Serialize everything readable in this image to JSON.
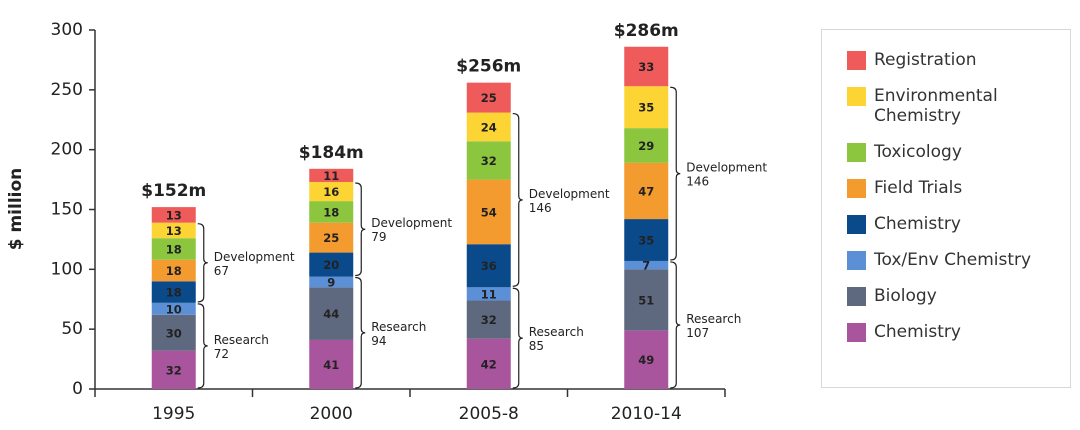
{
  "chart_data": {
    "type": "stacked_bar",
    "ylabel": "$ million",
    "categories": [
      "1995",
      "2000",
      "2005-8",
      "2010-14"
    ],
    "ylim": [
      0,
      300
    ],
    "yticks": [
      0,
      50,
      100,
      150,
      200,
      250,
      300
    ],
    "grid": false,
    "series": [
      {
        "name": "Chemistry",
        "color": "#a8559e",
        "values": [
          32,
          41,
          42,
          49
        ]
      },
      {
        "name": "Biology",
        "color": "#5e687e",
        "values": [
          30,
          44,
          32,
          51
        ]
      },
      {
        "name": "Tox/Env Chemistry",
        "color": "#5b8fd6",
        "values": [
          10,
          9,
          11,
          7
        ]
      },
      {
        "name": "Chemistry",
        "color": "#0b4a8a",
        "values": [
          18,
          20,
          36,
          35
        ]
      },
      {
        "name": "Field Trials",
        "color": "#f39b2f",
        "values": [
          18,
          25,
          54,
          47
        ]
      },
      {
        "name": "Toxicology",
        "color": "#8cc63f",
        "values": [
          18,
          18,
          32,
          29
        ]
      },
      {
        "name": "Environmental Chemistry",
        "color": "#fcd535",
        "values": [
          13,
          16,
          24,
          35
        ]
      },
      {
        "name": "Registration",
        "color": "#ef5a5a",
        "values": [
          13,
          11,
          25,
          33
        ]
      }
    ],
    "totals": {
      "values": [
        152,
        184,
        256,
        286
      ],
      "value_labels": [
        "$152m",
        "$184m",
        "$256m",
        "$286m"
      ]
    },
    "groups": [
      {
        "name": "Research",
        "values": [
          72,
          94,
          85,
          107
        ]
      },
      {
        "name": "Development",
        "values": [
          67,
          79,
          146,
          146
        ]
      }
    ]
  }
}
